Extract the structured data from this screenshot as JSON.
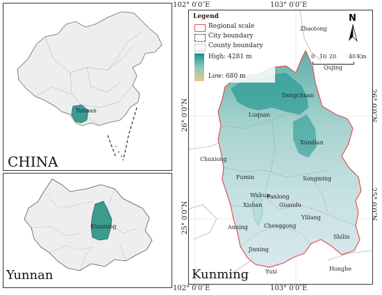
{
  "china_panel": {
    "label": "CHINA",
    "region_label": "Yunnan"
  },
  "yunnan_panel": {
    "label": "Yunnan",
    "region_label": "Kunming"
  },
  "kunming_panel": {
    "label": "Kunming",
    "legend": {
      "title": "Legend",
      "items": [
        "Regional scale",
        "City boundary",
        "County boundary"
      ],
      "high": "High: 4281 m",
      "low": "Low: 680 m"
    },
    "north": "N",
    "scale": {
      "ticks": [
        "0",
        "10",
        "20",
        "40",
        "Km"
      ],
      "label": "Qujing"
    },
    "ticks_top": [
      "102° 0′0″E",
      "103° 0′0″E"
    ],
    "ticks_bottom": [
      "102° 0′0″E",
      "103° 0′0″E"
    ],
    "ticks_left": [
      "26° 0′0″N",
      "25° 0′0″N"
    ],
    "ticks_right": [
      "26° 0′0″N",
      "25° 0′0″N"
    ],
    "neighbors": [
      "Zhaotong",
      "Chuxiong",
      "Yuxi",
      "Honghe"
    ],
    "districts": [
      "Dongchuan",
      "Luquan",
      "Xundian",
      "Songming",
      "Fumin",
      "Wuhua",
      "Panlong",
      "Xishan",
      "Guandu",
      "Yiliang",
      "Anning",
      "Chenggong",
      "Shilin",
      "Jinning"
    ]
  },
  "colors": {
    "relief_high": "#1f8f8a",
    "relief_low": "#e8c88a",
    "regional_border": "#e05050",
    "region_fill": "#3a9b8e"
  }
}
